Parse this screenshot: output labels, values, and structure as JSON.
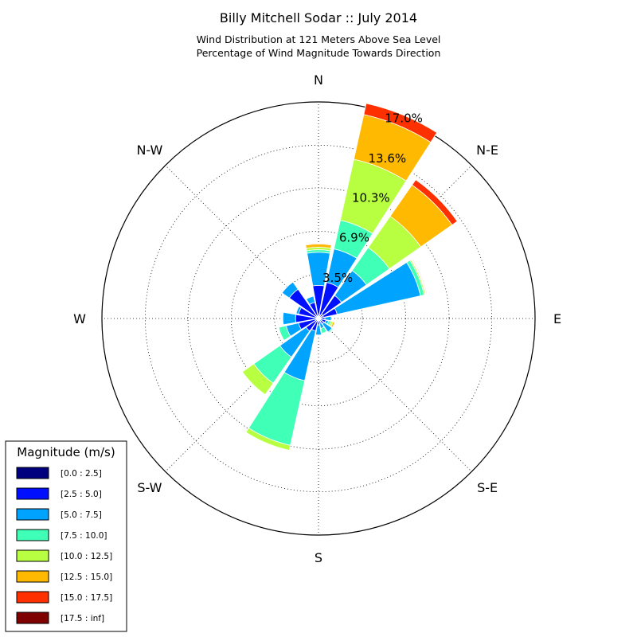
{
  "chart_data": {
    "type": "windrose",
    "title": "Billy Mitchell Sodar :: July 2014",
    "subtitle_lines": [
      "Wind Distribution at 121 Meters Above Sea Level",
      "Percentage of Wind Magnitude Towards Direction"
    ],
    "directions": [
      "N",
      "N-E",
      "E",
      "S-E",
      "S",
      "S-W",
      "W",
      "N-W"
    ],
    "ring_labels": [
      "3.5%",
      "6.9%",
      "10.3%",
      "13.6%",
      "17.0%"
    ],
    "ring_values": [
      3.45,
      6.85,
      10.25,
      13.6,
      17.0
    ],
    "r_max": 17.0,
    "grid": true,
    "legend_title": "Magnitude (m/s)",
    "legend_position": "lower-left",
    "bin_labels": [
      "[0.0 : 2.5]",
      "[2.5 : 5.0]",
      "[5.0 : 7.5]",
      "[7.5 : 10.0]",
      "[10.0 : 12.5]",
      "[12.5 : 15.0]",
      "[15.0 : 17.5]",
      "[17.5 : inf]"
    ],
    "bin_colors": [
      "#00007f",
      "#0010ff",
      "#00a4ff",
      "#40ffb7",
      "#b7ff40",
      "#ffb900",
      "#ff3000",
      "#7f0000"
    ],
    "sector_count": 16,
    "sector_angles_deg": [
      0,
      22.5,
      45,
      67.5,
      90,
      112.5,
      135,
      157.5,
      180,
      202.5,
      225,
      247.5,
      270,
      292.5,
      315,
      337.5
    ],
    "cumulative_values": [
      [
        0.2,
        2.6,
        5.2,
        5.4,
        5.6,
        5.85,
        5.9,
        5.9
      ],
      [
        0.3,
        2.9,
        5.6,
        7.9,
        12.8,
        16.4,
        17.3,
        17.3
      ],
      [
        0.4,
        2.2,
        4.6,
        6.8,
        9.8,
        12.8,
        13.3,
        13.3
      ],
      [
        0.4,
        1.5,
        8.2,
        8.5,
        8.6,
        8.65,
        8.7,
        8.75
      ],
      [
        0.1,
        0.5,
        1.0,
        1.0,
        1.0,
        1.0,
        1.0,
        1.0
      ],
      [
        0.1,
        0.6,
        0.8,
        1.0,
        1.15,
        1.3,
        1.35,
        1.35
      ],
      [
        0.1,
        0.5,
        1.3,
        1.4,
        1.4,
        1.4,
        1.4,
        1.4
      ],
      [
        0.1,
        0.4,
        0.8,
        1.2,
        1.2,
        1.2,
        1.2,
        1.2
      ],
      [
        0.1,
        0.5,
        1.3,
        1.3,
        1.3,
        1.3,
        1.3,
        1.3
      ],
      [
        0.1,
        1.0,
        5.0,
        10.2,
        10.6,
        10.6,
        10.6,
        10.6
      ],
      [
        0.1,
        1.2,
        3.7,
        6.2,
        7.3,
        7.3,
        7.3,
        7.3
      ],
      [
        0.1,
        1.6,
        2.6,
        3.2,
        3.2,
        3.2,
        3.2,
        3.2
      ],
      [
        0.1,
        1.8,
        2.8,
        2.8,
        2.8,
        2.8,
        2.8,
        2.8
      ],
      [
        0.1,
        1.6,
        1.8,
        1.8,
        1.8,
        1.8,
        1.8,
        1.85
      ],
      [
        0.2,
        2.8,
        3.5,
        3.5,
        3.5,
        3.5,
        3.5,
        3.5
      ],
      [
        0.2,
        1.3,
        1.8,
        1.8,
        1.8,
        1.8,
        1.8,
        1.8
      ]
    ]
  }
}
